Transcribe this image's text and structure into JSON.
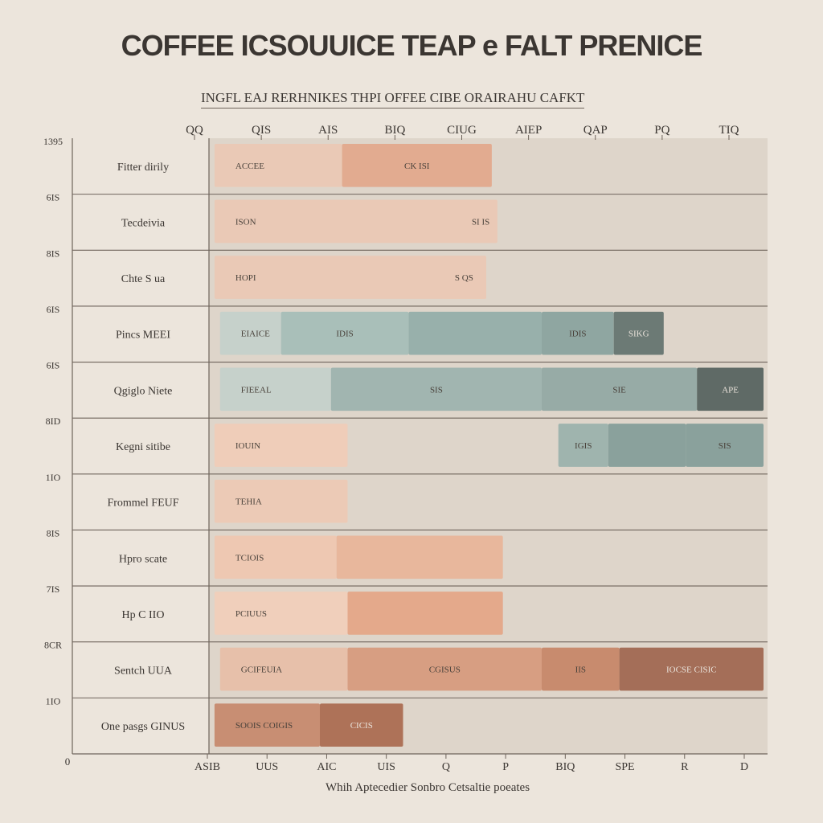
{
  "chart_data": {
    "type": "bar",
    "title": "COFFEE ICSOUUICE TEAP e FALT PRENICE",
    "subtitle": "INGFL EAJ RERHNIKES THPI OFFEE CIBE ORAIRAHU CAFKT",
    "xlabel": "Whih Aptecedier Sonbro Cetsaltie poeates",
    "top_ticks": [
      "QQ",
      "QIS",
      "AIS",
      "BIQ",
      "CIUG",
      "AIEP",
      "QAP",
      "PQ",
      "TIQ"
    ],
    "bottom_ticks": [
      "ASIB",
      "UUS",
      "AIC",
      "UIS",
      "Q",
      "P",
      "BIQ",
      "SPE",
      "R",
      "D"
    ],
    "bottom_origin": "0",
    "left_ticks": [
      "1395",
      "6IS",
      "8IS",
      "6IS",
      "6IS",
      "8ID",
      "1IO",
      "8IS",
      "7IS",
      "8CR",
      "1IO"
    ],
    "xlim": [
      0,
      100
    ],
    "categories": [
      "Fitter dirily",
      "Tecdeivia",
      "Chte S ua",
      "Pincs MEEI",
      "Qgiglo Niete",
      "Kegni sitibe",
      "Frommel FEUF",
      "Hpro scate",
      "Hp C IIO",
      "Sentch UUA",
      "One pasgs GINUS"
    ],
    "rows": [
      {
        "segments": [
          {
            "start": 1,
            "end": 24,
            "color": "#eac9b6",
            "label": "ACCEE"
          },
          {
            "start": 24,
            "end": 51,
            "color": "#e2ab90",
            "label": "CK ISI"
          }
        ]
      },
      {
        "segments": [
          {
            "start": 1,
            "end": 52,
            "color": "#eac9b6",
            "label": "ISON"
          },
          {
            "start": 46,
            "end": 52,
            "color": "#eac9b6",
            "label": "SI IS"
          }
        ]
      },
      {
        "segments": [
          {
            "start": 1,
            "end": 50,
            "color": "#eac9b6",
            "label": "HOPI"
          },
          {
            "start": 42,
            "end": 50,
            "color": "#eac9b6",
            "label": "S QS"
          }
        ]
      },
      {
        "segments": [
          {
            "start": 2,
            "end": 13,
            "color": "#c6d1cb",
            "label": "EIAICE"
          },
          {
            "start": 13,
            "end": 36,
            "color": "#a9bfb9",
            "label": "IDIS"
          },
          {
            "start": 36,
            "end": 60,
            "color": "#98b0ab",
            "label": ""
          },
          {
            "start": 60,
            "end": 73,
            "color": "#8fa6a1",
            "label": "IDIS"
          },
          {
            "start": 73,
            "end": 82,
            "color": "#6c7a75",
            "label": "SIKG"
          }
        ]
      },
      {
        "segments": [
          {
            "start": 2,
            "end": 22,
            "color": "#c6d1cb",
            "label": "FIEEAL"
          },
          {
            "start": 22,
            "end": 60,
            "color": "#a1b5b0",
            "label": "SIS"
          },
          {
            "start": 60,
            "end": 88,
            "color": "#97aba6",
            "label": "SIE"
          },
          {
            "start": 88,
            "end": 100,
            "color": "#5f6a66",
            "label": "APE"
          }
        ]
      },
      {
        "segments": [
          {
            "start": 1,
            "end": 25,
            "color": "#efcdb9",
            "label": "IOUIN"
          },
          {
            "start": 63,
            "end": 72,
            "color": "#9fb4ae",
            "label": "IGIS"
          },
          {
            "start": 72,
            "end": 86,
            "color": "#8aa19c",
            "label": ""
          },
          {
            "start": 86,
            "end": 100,
            "color": "#8aa19c",
            "label": "SIS"
          }
        ]
      },
      {
        "segments": [
          {
            "start": 1,
            "end": 25,
            "color": "#eccab6",
            "label": "TEHIA"
          }
        ]
      },
      {
        "segments": [
          {
            "start": 1,
            "end": 23,
            "color": "#eec8b2",
            "label": "TCIOIS"
          },
          {
            "start": 23,
            "end": 53,
            "color": "#e8b79c",
            "label": ""
          }
        ]
      },
      {
        "segments": [
          {
            "start": 1,
            "end": 25,
            "color": "#f0cfbb",
            "label": "PCIUUS"
          },
          {
            "start": 25,
            "end": 53,
            "color": "#e4a98b",
            "label": ""
          }
        ]
      },
      {
        "segments": [
          {
            "start": 2,
            "end": 25,
            "color": "#e7c0aa",
            "label": "GCIFEUIA"
          },
          {
            "start": 25,
            "end": 60,
            "color": "#d79e82",
            "label": "CGISUS"
          },
          {
            "start": 60,
            "end": 74,
            "color": "#c88b6e",
            "label": "IIS"
          },
          {
            "start": 74,
            "end": 100,
            "color": "#a46e58",
            "label": "IOCSE  CISIC"
          }
        ]
      },
      {
        "segments": [
          {
            "start": 1,
            "end": 20,
            "color": "#c88e73",
            "label": "SOOIS COIGIS"
          },
          {
            "start": 20,
            "end": 35,
            "color": "#ae7258",
            "label": "CICIS"
          }
        ]
      }
    ]
  }
}
